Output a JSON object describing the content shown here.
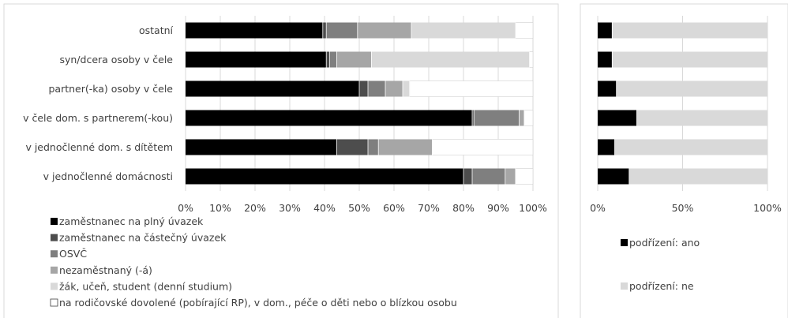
{
  "chart_data": [
    {
      "type": "bar",
      "orientation": "horizontal",
      "stacked": "percent",
      "categories": [
        "ostatní",
        "syn/dcera osoby v čele",
        "partner(-ka) osoby v čele",
        "v čele dom. s partnerem(-kou)",
        "v jednočlenné dom. s dítětem",
        "v jednočlenné domácnosti"
      ],
      "series": [
        {
          "name": "zaměstnanec na plný úvazek",
          "color": "#000000",
          "values": [
            39.5,
            40.5,
            50,
            82.5,
            43.5,
            80
          ]
        },
        {
          "name": "zaměstnanec na částečný úvazek",
          "color": "#4d4d4d",
          "values": [
            1,
            1,
            2.5,
            0.5,
            9,
            2.5
          ]
        },
        {
          "name": "OSVČ",
          "color": "#7f7f7f",
          "values": [
            9,
            2,
            5,
            13,
            3,
            9.5
          ]
        },
        {
          "name": "nezaměstnaný (-á)",
          "color": "#a6a6a6",
          "values": [
            15.5,
            10,
            5,
            1.5,
            15.5,
            3
          ]
        },
        {
          "name": "žák, učeň, student (denní studium)",
          "color": "#d9d9d9",
          "values": [
            30,
            45.5,
            2,
            0,
            0,
            0
          ]
        },
        {
          "name": "na rodičovské dovolené (pobírající RP), v dom., péče o děti nebo o blízkou osobu",
          "color": "#ffffff",
          "values": [
            5,
            1,
            35.5,
            2.5,
            29,
            5
          ]
        }
      ],
      "xticks": [
        "0%",
        "10%",
        "20%",
        "30%",
        "40%",
        "50%",
        "60%",
        "70%",
        "80%",
        "90%",
        "100%"
      ],
      "xlim": [
        0,
        100
      ],
      "legend_position": "bottom"
    },
    {
      "type": "bar",
      "orientation": "horizontal",
      "stacked": "percent",
      "categories": [
        "ostatní",
        "syn/dcera osoby v čele",
        "partner(-ka) osoby v čele",
        "v čele dom. s partnerem(-kou)",
        "v jednočlenné dom. s dítětem",
        "v jednočlenné domácnosti"
      ],
      "series": [
        {
          "name": "podřízení: ano",
          "color": "#000000",
          "values": [
            8.5,
            8.5,
            11,
            23,
            10,
            18.5
          ]
        },
        {
          "name": "podřízení: ne",
          "color": "#d9d9d9",
          "values": [
            91.5,
            91.5,
            89,
            77,
            90,
            81.5
          ]
        }
      ],
      "xticks": [
        "0%",
        "50%",
        "100%"
      ],
      "xlim": [
        0,
        100
      ],
      "legend_position": "bottom"
    }
  ]
}
